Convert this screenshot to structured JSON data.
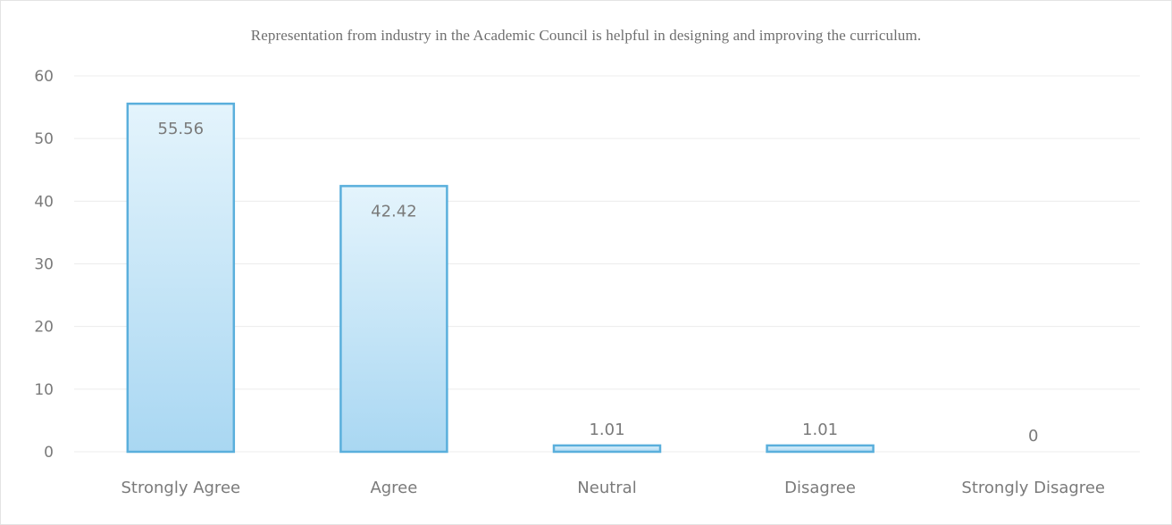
{
  "title": "Representation from industry in the Academic Council is helpful in designing and improving the curriculum.",
  "chart_data": {
    "type": "bar",
    "title": "Representation from industry in the Academic Council is helpful in designing and improving the curriculum.",
    "categories": [
      "Strongly Agree",
      "Agree",
      "Neutral",
      "Disagree",
      "Strongly Disagree"
    ],
    "values": [
      55.56,
      42.42,
      1.01,
      1.01,
      0
    ],
    "data_labels": [
      "55.56",
      "42.42",
      "1.01",
      "1.01",
      "0"
    ],
    "xlabel": "",
    "ylabel": "",
    "ylim": [
      0,
      60
    ],
    "yticks": [
      0,
      10,
      20,
      30,
      40,
      50,
      60
    ],
    "ytick_labels": [
      "0",
      "10",
      "20",
      "30",
      "40",
      "50",
      "60"
    ],
    "grid": true,
    "legend": "none",
    "colors": {
      "bar_top": "#e4f4fc",
      "bar_bottom": "#a9d7f2",
      "bar_border": "#5aafdc",
      "grid": "#ececec",
      "text": "#7a7a7a"
    }
  }
}
